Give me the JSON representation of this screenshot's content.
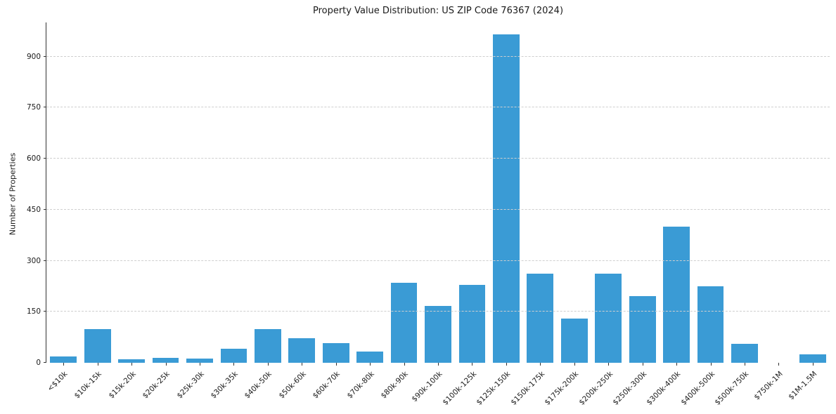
{
  "chart_data": {
    "type": "bar",
    "title": "Property Value Distribution: US ZIP Code 76367 (2024)",
    "xlabel": "",
    "ylabel": "Number of Properties",
    "categories": [
      "<$10k",
      "$10k-15k",
      "$15k-20k",
      "$20k-25k",
      "$25k-30k",
      "$30k-35k",
      "$40k-50k",
      "$50k-60k",
      "$60k-70k",
      "$70k-80k",
      "$80k-90k",
      "$90k-100k",
      "$100k-125k",
      "$125k-150k",
      "$150k-175k",
      "$175k-200k",
      "$200k-250k",
      "$250k-300k",
      "$300k-400k",
      "$400k-500k",
      "$500k-750k",
      "$750k-1M",
      "$1M-1.5M"
    ],
    "values": [
      19,
      98,
      10,
      14,
      13,
      42,
      100,
      73,
      58,
      32,
      236,
      167,
      228,
      965,
      262,
      130,
      262,
      195,
      400,
      224,
      55,
      0,
      24
    ],
    "ylim": [
      0,
      1000
    ],
    "yticks": [
      0,
      150,
      300,
      450,
      600,
      750,
      900
    ],
    "grid": "horizontal-dashed",
    "legend": "none",
    "bar_color": "#3a9bd5",
    "background_color": "#ffffff"
  }
}
